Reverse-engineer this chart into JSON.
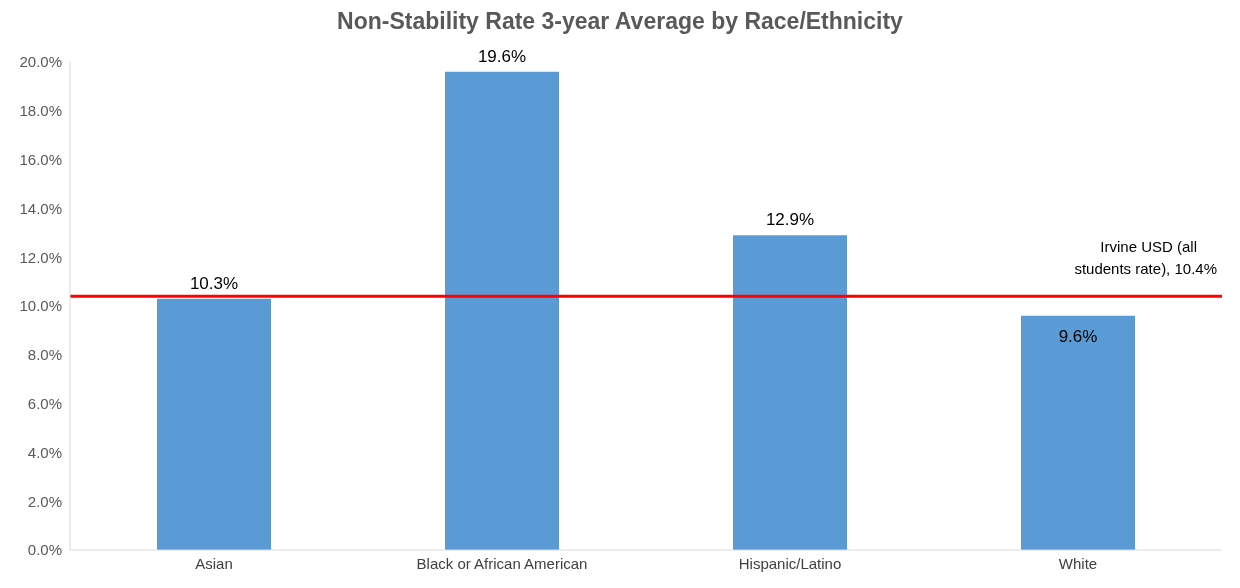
{
  "chart_data": {
    "type": "bar",
    "title": "Non-Stability Rate 3-year Average by Race/Ethnicity",
    "categories": [
      "Asian",
      "Black or African American",
      "Hispanic/Latino",
      "White"
    ],
    "values": [
      10.3,
      19.6,
      12.9,
      9.6
    ],
    "color": "#5b9bd5",
    "ylim": [
      0,
      20
    ],
    "yticks": [
      {
        "value": 0,
        "label": "0.0%"
      },
      {
        "value": 2,
        "label": "2.0%"
      },
      {
        "value": 4,
        "label": "4.0%"
      },
      {
        "value": 6,
        "label": "6.0%"
      },
      {
        "value": 8,
        "label": "8.0%"
      },
      {
        "value": 10,
        "label": "10.0%"
      },
      {
        "value": 12,
        "label": "12.0%"
      },
      {
        "value": 14,
        "label": "14.0%"
      },
      {
        "value": 16,
        "label": "16.0%"
      },
      {
        "value": 18,
        "label": "18.0%"
      },
      {
        "value": 20,
        "label": "20.0%"
      }
    ],
    "value_labels": [
      "10.3%",
      "19.6%",
      "12.9%",
      "9.6%"
    ],
    "ref_lines": [
      {
        "axis": "y",
        "value": 10.4,
        "label": "Irvine USD (all students rate), 10.4%",
        "color": "#ff0000"
      }
    ],
    "grid": false
  }
}
